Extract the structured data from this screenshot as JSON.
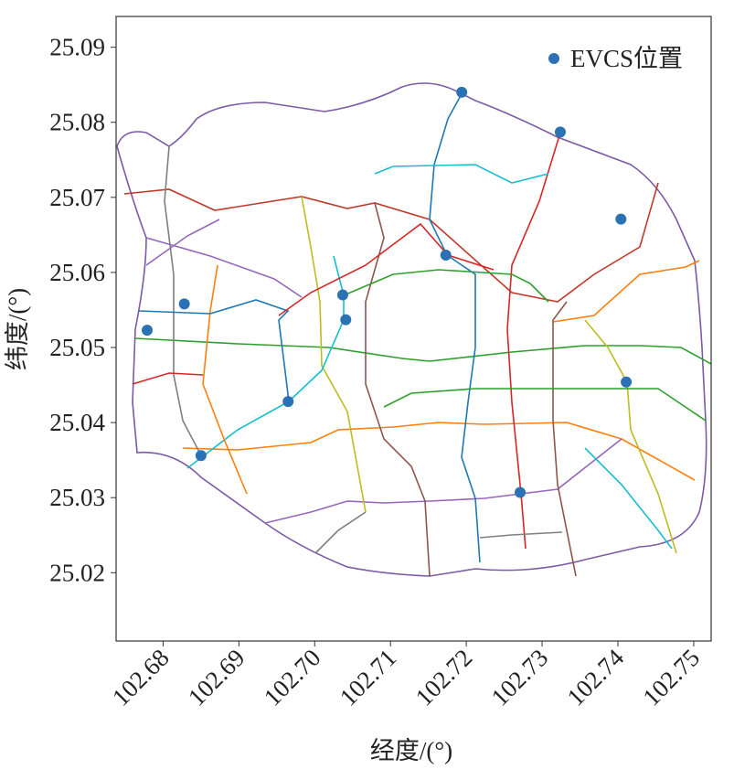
{
  "chart_data": {
    "type": "scatter",
    "xlabel": "经度/(°)",
    "ylabel": "纬度/(°)",
    "series": [
      {
        "name": "EVCS位置",
        "color": "#2b72b5",
        "x": [
          102.7194,
          102.7324,
          102.7404,
          102.7173,
          102.7037,
          102.6828,
          102.7041,
          102.6779,
          102.7411,
          102.6965,
          102.685,
          102.7271
        ],
        "y": [
          25.084,
          25.0787,
          25.0671,
          25.0623,
          25.057,
          25.0558,
          25.0537,
          25.0523,
          25.0454,
          25.0428,
          25.0356,
          25.0307
        ]
      }
    ],
    "xlim": [
      102.6738,
      102.7523
    ],
    "ylim": [
      25.0109,
      25.0941
    ],
    "xticks": [
      102.68,
      102.69,
      {
        "value": 102.7,
        "label": "102.70"
      },
      102.71,
      102.72,
      102.73,
      102.74,
      102.75
    ],
    "yticks": [
      25.02,
      25.03,
      25.04,
      25.05,
      25.06,
      25.07,
      25.08,
      25.09
    ],
    "legend": "upper right"
  }
}
